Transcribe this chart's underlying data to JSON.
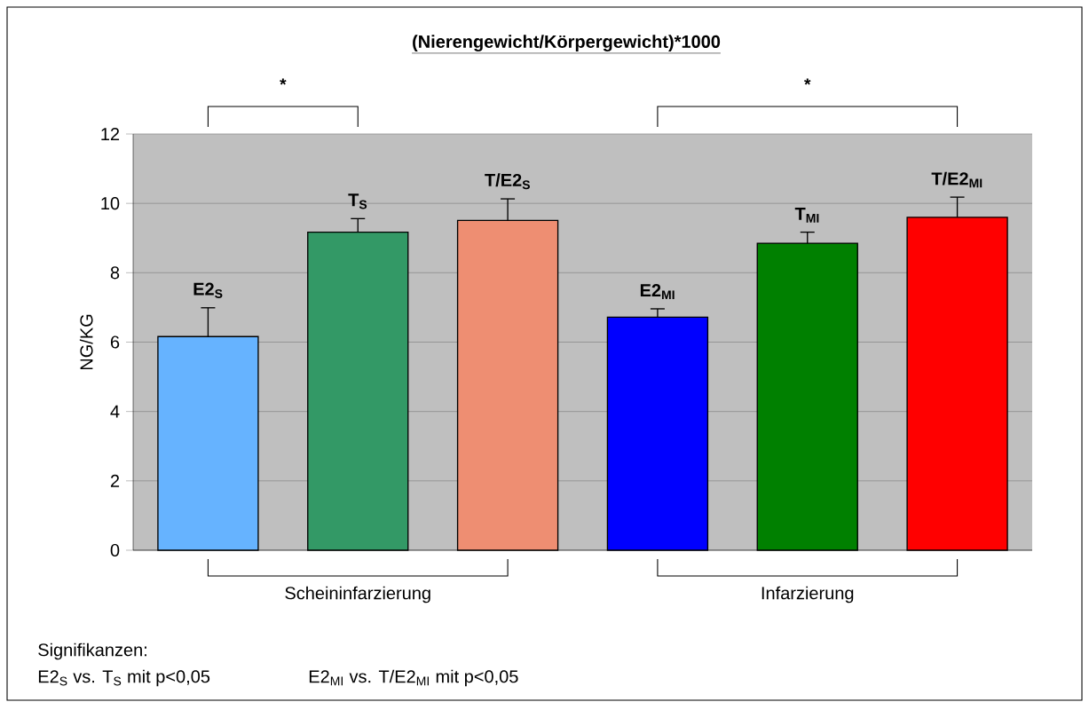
{
  "chart_data": {
    "type": "bar",
    "title": "(Nierengewicht/Körpergewicht)*1000",
    "ylabel": "NG/KG",
    "categories": [
      "E2$_{S}$",
      "T$_{S}$",
      "T/E2$_{S}$",
      "E2$_{MI}$",
      "T$_{MI}$",
      "T/E2$_{MI}$"
    ],
    "values": [
      6.16,
      9.17,
      9.51,
      6.72,
      8.85,
      9.6
    ],
    "errors": [
      [
        6.16,
        6.99
      ],
      [
        9.17,
        9.56
      ],
      [
        9.51,
        10.13
      ],
      [
        6.72,
        6.96
      ],
      [
        8.85,
        9.17
      ],
      [
        9.6,
        10.18
      ]
    ],
    "colors": [
      "#66b3ff",
      "#339966",
      "#ee8e72",
      "#0000ff",
      "#008000",
      "#ff0000"
    ],
    "ylim": [
      0,
      12
    ],
    "yticks": [
      0,
      2,
      4,
      6,
      8,
      10,
      12
    ],
    "grid": "y",
    "annotations": [
      "*",
      "*",
      "Scheininfarzierung",
      "Infarzierung",
      "Signifikanzen:",
      "E2$_{S}$ vs. T$_{S}$ mit p<0,05",
      "E2$_{MI}$ vs. T/E2$_{MI}$ mit p<0,05"
    ]
  }
}
